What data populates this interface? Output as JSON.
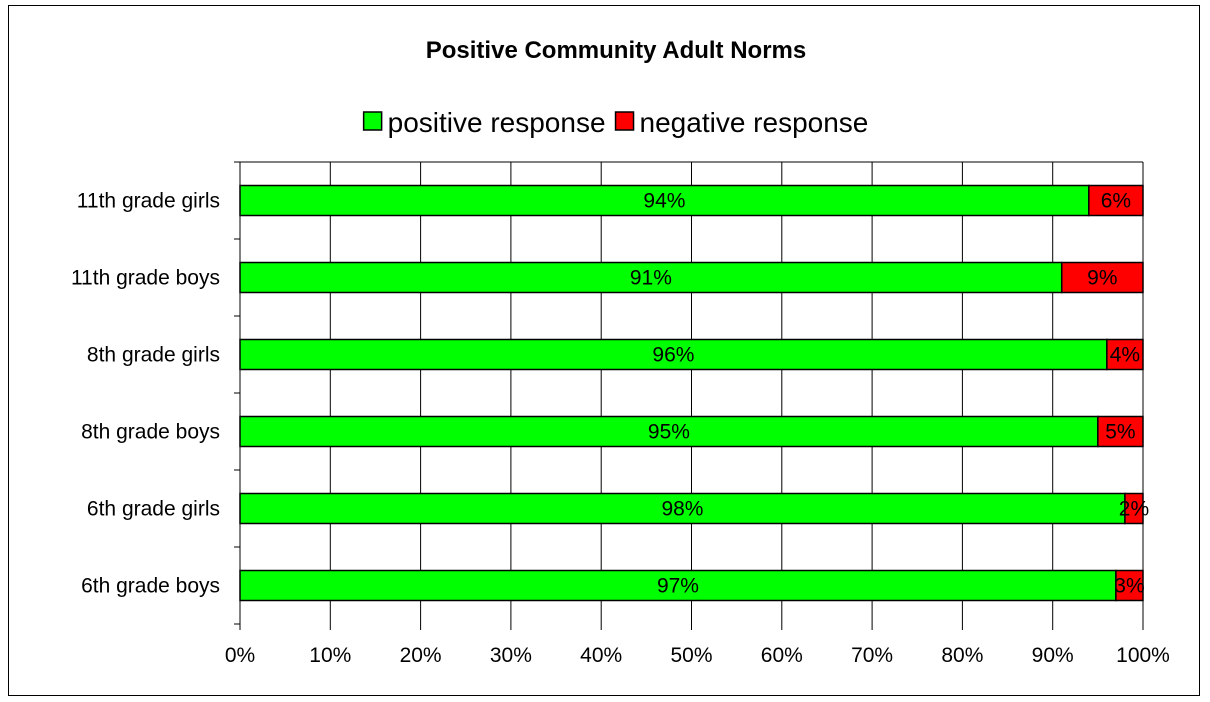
{
  "chart_data": {
    "type": "bar",
    "orientation": "horizontal",
    "stacked": true,
    "title": "Positive Community Adult Norms",
    "categories": [
      "11th grade girls",
      "11th grade boys",
      "8th grade girls",
      "8th grade boys",
      "6th grade girls",
      "6th grade boys"
    ],
    "series": [
      {
        "name": "positive response",
        "color": "#00ff00",
        "values": [
          94,
          91,
          96,
          95,
          98,
          97
        ],
        "labels": [
          "94%",
          "91%",
          "96%",
          "95%",
          "98%",
          "97%"
        ]
      },
      {
        "name": "negative response",
        "color": "#ff0000",
        "values": [
          6,
          9,
          4,
          5,
          2,
          3
        ],
        "labels": [
          "6%",
          "9%",
          "4%",
          "5%",
          "2%",
          "3%"
        ]
      }
    ],
    "xlim": [
      0,
      100
    ],
    "xticks": [
      "0%",
      "10%",
      "20%",
      "30%",
      "40%",
      "50%",
      "60%",
      "70%",
      "80%",
      "90%",
      "100%"
    ],
    "grid": true,
    "legend": "top"
  }
}
